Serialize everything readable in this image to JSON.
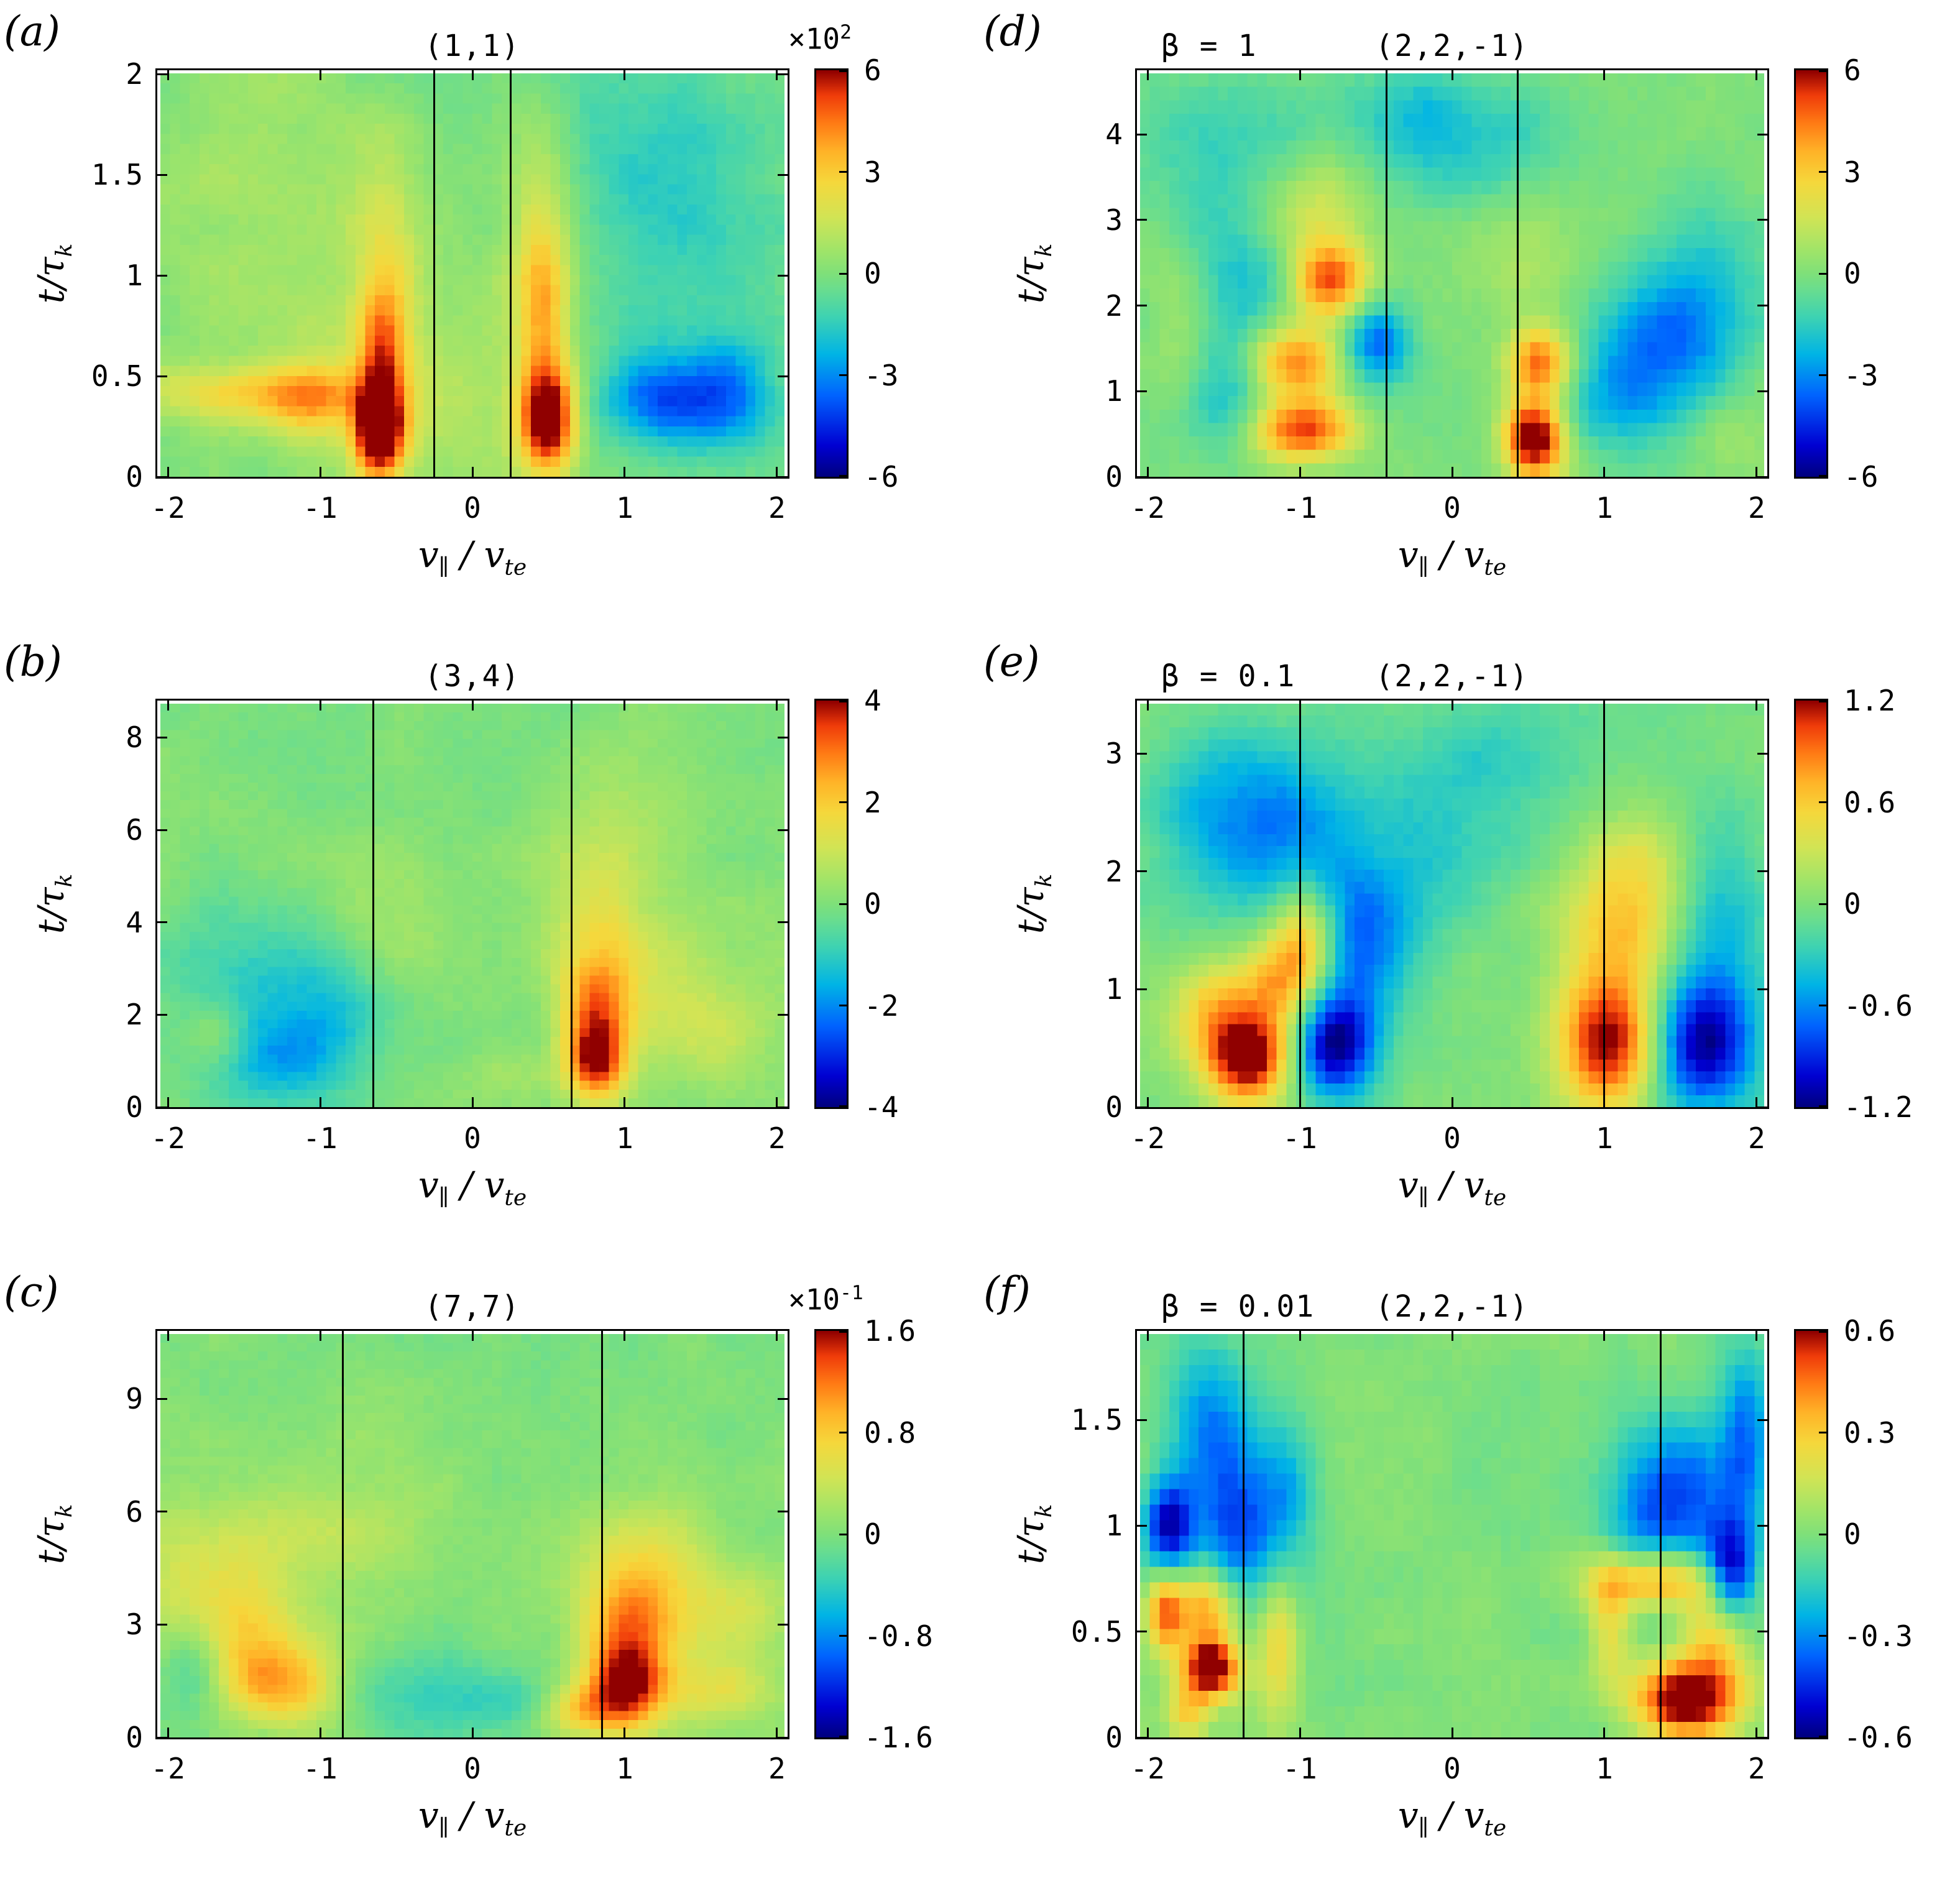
{
  "labels": {
    "ylabel_main": "t/τ",
    "ylabel_sub": "k",
    "xlabel_v": "v",
    "xlabel_sub1": "∥",
    "xlabel_mid": " / ",
    "xlabel_v2": "v",
    "xlabel_sub2": "te"
  },
  "palette": {
    "stops": [
      [
        -1.0,
        "#000080"
      ],
      [
        -0.85,
        "#0000d2"
      ],
      [
        -0.6,
        "#0064ff"
      ],
      [
        -0.4,
        "#00b4e6"
      ],
      [
        -0.22,
        "#3cd2b4"
      ],
      [
        -0.08,
        "#69dd8f"
      ],
      [
        0.0,
        "#7fe07a"
      ],
      [
        0.1,
        "#9ce46b"
      ],
      [
        0.28,
        "#d2e455"
      ],
      [
        0.45,
        "#f5d83c"
      ],
      [
        0.6,
        "#ffb428"
      ],
      [
        0.75,
        "#ff7814"
      ],
      [
        0.88,
        "#f03c0a"
      ],
      [
        1.0,
        "#900000"
      ]
    ]
  },
  "chart_data": [
    {
      "panel_label": "(a)",
      "beta_label": null,
      "title": "(1,1)",
      "type": "heatmap",
      "xlabel": "v∥ / vte",
      "ylabel": "t/τk",
      "xlim": [
        -2.07,
        2.07
      ],
      "ylim": [
        0,
        2.02
      ],
      "xticks": [
        {
          "v": -2,
          "label": "-2"
        },
        {
          "v": -1,
          "label": "-1"
        },
        {
          "v": 0,
          "label": "0"
        },
        {
          "v": 1,
          "label": "1"
        },
        {
          "v": 2,
          "label": "2"
        }
      ],
      "yticks": [
        {
          "v": 0,
          "label": "0"
        },
        {
          "v": 0.5,
          "label": "0.5"
        },
        {
          "v": 1,
          "label": "1"
        },
        {
          "v": 1.5,
          "label": "1.5"
        },
        {
          "v": 2,
          "label": "2"
        }
      ],
      "colorbar": {
        "max": 6,
        "scale_base": "×10",
        "scale_exp": "2",
        "ticks": [
          {
            "v": 6,
            "label": "6"
          },
          {
            "v": 3,
            "label": "3"
          },
          {
            "v": 0,
            "label": "0"
          },
          {
            "v": -3,
            "label": "-3"
          },
          {
            "v": -6,
            "label": "-6"
          }
        ]
      },
      "resonance_lines": [
        -0.25,
        0.25
      ],
      "grid": {
        "nx": 64,
        "ny": 40
      },
      "blobs": [
        [
          -0.62,
          0.22,
          0.12,
          0.16,
          7.5
        ],
        [
          -0.6,
          0.62,
          0.11,
          0.22,
          3.6
        ],
        [
          -0.56,
          1.15,
          0.15,
          0.35,
          1.7
        ],
        [
          0.5,
          0.28,
          0.13,
          0.18,
          6.8
        ],
        [
          0.47,
          0.8,
          0.12,
          0.28,
          3.2
        ],
        [
          0.45,
          1.35,
          0.16,
          0.35,
          1.8
        ],
        [
          -1.45,
          0.42,
          0.5,
          0.1,
          2.6
        ],
        [
          -1.05,
          0.38,
          0.22,
          0.14,
          2.2
        ],
        [
          -0.25,
          0.45,
          0.55,
          0.45,
          1.0
        ],
        [
          1.25,
          0.38,
          0.28,
          0.16,
          -3.4
        ],
        [
          1.72,
          0.42,
          0.22,
          0.2,
          -2.4
        ],
        [
          1.45,
          1.15,
          0.5,
          0.55,
          -1.3
        ],
        [
          -1.3,
          1.35,
          0.55,
          0.55,
          0.9
        ],
        [
          1.0,
          1.75,
          0.8,
          0.4,
          -0.7
        ]
      ]
    },
    {
      "panel_label": "(b)",
      "beta_label": null,
      "title": "(3,4)",
      "type": "heatmap",
      "xlabel": "v∥ / vte",
      "ylabel": "t/τk",
      "xlim": [
        -2.07,
        2.07
      ],
      "ylim": [
        0,
        8.8
      ],
      "xticks": [
        {
          "v": -2,
          "label": "-2"
        },
        {
          "v": -1,
          "label": "-1"
        },
        {
          "v": 0,
          "label": "0"
        },
        {
          "v": 1,
          "label": "1"
        },
        {
          "v": 2,
          "label": "2"
        }
      ],
      "yticks": [
        {
          "v": 0,
          "label": "0"
        },
        {
          "v": 2,
          "label": "2"
        },
        {
          "v": 4,
          "label": "4"
        },
        {
          "v": 6,
          "label": "6"
        },
        {
          "v": 8,
          "label": "8"
        }
      ],
      "colorbar": {
        "max": 4,
        "scale_base": null,
        "scale_exp": null,
        "ticks": [
          {
            "v": 4,
            "label": "4"
          },
          {
            "v": 2,
            "label": "2"
          },
          {
            "v": 0,
            "label": "0"
          },
          {
            "v": -2,
            "label": "-2"
          },
          {
            "v": -4,
            "label": "-4"
          }
        ]
      },
      "resonance_lines": [
        -0.65,
        0.65
      ],
      "grid": {
        "nx": 64,
        "ny": 46
      },
      "blobs": [
        [
          0.82,
          1.0,
          0.14,
          0.6,
          3.6
        ],
        [
          0.82,
          2.2,
          0.17,
          0.8,
          2.2
        ],
        [
          0.85,
          3.8,
          0.22,
          1.2,
          1.1
        ],
        [
          0.9,
          5.5,
          0.3,
          1.5,
          0.55
        ],
        [
          -1.25,
          1.3,
          0.35,
          0.9,
          -1.5
        ],
        [
          -1.5,
          2.8,
          0.45,
          1.2,
          -0.9
        ],
        [
          -0.95,
          2.2,
          0.3,
          1.0,
          -0.8
        ],
        [
          -1.7,
          1.6,
          0.15,
          0.5,
          0.9
        ],
        [
          -1.35,
          2.0,
          0.25,
          0.6,
          0.7
        ],
        [
          1.5,
          1.5,
          0.35,
          0.8,
          0.9
        ],
        [
          1.35,
          3.0,
          0.4,
          1.0,
          0.5
        ],
        [
          -0.55,
          4.0,
          0.5,
          1.3,
          0.45
        ],
        [
          0.3,
          0.7,
          0.25,
          0.4,
          0.5
        ]
      ]
    },
    {
      "panel_label": "(c)",
      "beta_label": null,
      "title": "(7,7)",
      "type": "heatmap",
      "xlabel": "v∥ / vte",
      "ylabel": "t/τk",
      "xlim": [
        -2.07,
        2.07
      ],
      "ylim": [
        0,
        10.8
      ],
      "xticks": [
        {
          "v": -2,
          "label": "-2"
        },
        {
          "v": -1,
          "label": "-1"
        },
        {
          "v": 0,
          "label": "0"
        },
        {
          "v": 1,
          "label": "1"
        },
        {
          "v": 2,
          "label": "2"
        }
      ],
      "yticks": [
        {
          "v": 0,
          "label": "0"
        },
        {
          "v": 3,
          "label": "3"
        },
        {
          "v": 6,
          "label": "6"
        },
        {
          "v": 9,
          "label": "9"
        }
      ],
      "colorbar": {
        "max": 1.6,
        "scale_base": "×10",
        "scale_exp": "-1",
        "ticks": [
          {
            "v": 1.6,
            "label": "1.6"
          },
          {
            "v": 0.8,
            "label": "0.8"
          },
          {
            "v": 0,
            "label": "0"
          },
          {
            "v": -0.8,
            "label": "-0.8"
          },
          {
            "v": -1.6,
            "label": "-1.6"
          }
        ]
      },
      "resonance_lines": [
        -0.85,
        0.85
      ],
      "grid": {
        "nx": 64,
        "ny": 46
      },
      "blobs": [
        [
          1.02,
          1.4,
          0.18,
          0.8,
          1.5
        ],
        [
          1.05,
          3.0,
          0.22,
          1.0,
          0.9
        ],
        [
          1.15,
          4.6,
          0.3,
          1.3,
          0.5
        ],
        [
          0.72,
          0.7,
          0.2,
          0.5,
          0.8
        ],
        [
          -1.25,
          1.4,
          0.3,
          0.8,
          0.95
        ],
        [
          -1.55,
          2.8,
          0.35,
          1.0,
          0.55
        ],
        [
          -1.8,
          4.6,
          0.3,
          1.3,
          0.35
        ],
        [
          -1.85,
          2.0,
          0.15,
          0.9,
          -0.5
        ],
        [
          -0.45,
          1.2,
          0.4,
          0.8,
          -0.35
        ],
        [
          0.3,
          0.9,
          0.25,
          0.5,
          -0.3
        ],
        [
          1.75,
          3.2,
          0.25,
          1.0,
          0.5
        ],
        [
          -0.95,
          5.5,
          0.6,
          1.5,
          0.3
        ],
        [
          1.6,
          1.2,
          0.3,
          0.6,
          0.45
        ]
      ]
    },
    {
      "panel_label": "(d)",
      "beta_label": "β = 1",
      "title": "(2,2,-1)",
      "type": "heatmap",
      "xlabel": "v∥ / vte",
      "ylabel": "t/τk",
      "xlim": [
        -2.07,
        2.07
      ],
      "ylim": [
        0,
        4.75
      ],
      "xticks": [
        {
          "v": -2,
          "label": "-2"
        },
        {
          "v": -1,
          "label": "-1"
        },
        {
          "v": 0,
          "label": "0"
        },
        {
          "v": 1,
          "label": "1"
        },
        {
          "v": 2,
          "label": "2"
        }
      ],
      "yticks": [
        {
          "v": 0,
          "label": "0"
        },
        {
          "v": 1,
          "label": "1"
        },
        {
          "v": 2,
          "label": "2"
        },
        {
          "v": 3,
          "label": "3"
        },
        {
          "v": 4,
          "label": "4"
        }
      ],
      "colorbar": {
        "max": 6,
        "scale_base": null,
        "scale_exp": null,
        "ticks": [
          {
            "v": 6,
            "label": "6"
          },
          {
            "v": 3,
            "label": "3"
          },
          {
            "v": 0,
            "label": "0"
          },
          {
            "v": -3,
            "label": "-3"
          },
          {
            "v": -6,
            "label": "-6"
          }
        ]
      },
      "resonance_lines": [
        -0.43,
        0.43
      ],
      "grid": {
        "nx": 64,
        "ny": 30
      },
      "blobs": [
        [
          0.55,
          0.45,
          0.14,
          0.32,
          7.2
        ],
        [
          0.58,
          1.35,
          0.14,
          0.28,
          4.6
        ],
        [
          -1.0,
          0.55,
          0.24,
          0.26,
          5.4
        ],
        [
          -1.05,
          1.35,
          0.22,
          0.3,
          4.6
        ],
        [
          -0.82,
          2.3,
          0.18,
          0.32,
          5.0
        ],
        [
          -0.95,
          3.1,
          0.28,
          0.45,
          2.0
        ],
        [
          -0.5,
          1.55,
          0.16,
          0.35,
          -3.6
        ],
        [
          -1.5,
          1.0,
          0.2,
          0.5,
          -1.8
        ],
        [
          -1.35,
          2.3,
          0.28,
          0.7,
          -1.6
        ],
        [
          -1.6,
          3.8,
          0.4,
          0.8,
          -1.5
        ],
        [
          1.35,
          1.45,
          0.35,
          0.55,
          -3.0
        ],
        [
          1.6,
          2.3,
          0.3,
          0.7,
          -1.7
        ],
        [
          1.05,
          0.75,
          0.25,
          0.35,
          -1.6
        ],
        [
          0.2,
          3.9,
          0.5,
          0.55,
          -1.5
        ],
        [
          -0.3,
          4.3,
          0.4,
          0.4,
          -1.2
        ],
        [
          0.55,
          2.6,
          0.25,
          0.7,
          0.9
        ],
        [
          1.8,
          0.5,
          0.2,
          0.35,
          0.9
        ],
        [
          -1.8,
          1.8,
          0.15,
          0.8,
          0.8
        ]
      ]
    },
    {
      "panel_label": "(e)",
      "beta_label": "β = 0.1",
      "title": "(2,2,-1)",
      "type": "heatmap",
      "xlabel": "v∥ / vte",
      "ylabel": "t/τk",
      "xlim": [
        -2.07,
        2.07
      ],
      "ylim": [
        0,
        3.45
      ],
      "xticks": [
        {
          "v": -2,
          "label": "-2"
        },
        {
          "v": -1,
          "label": "-1"
        },
        {
          "v": 0,
          "label": "0"
        },
        {
          "v": 1,
          "label": "1"
        },
        {
          "v": 2,
          "label": "2"
        }
      ],
      "yticks": [
        {
          "v": 0,
          "label": "0"
        },
        {
          "v": 1,
          "label": "1"
        },
        {
          "v": 2,
          "label": "2"
        },
        {
          "v": 3,
          "label": "3"
        }
      ],
      "colorbar": {
        "max": 1.2,
        "scale_base": null,
        "scale_exp": null,
        "ticks": [
          {
            "v": 1.2,
            "label": "1.2"
          },
          {
            "v": 0.6,
            "label": "0.6"
          },
          {
            "v": 0,
            "label": "0"
          },
          {
            "v": -0.6,
            "label": "-0.6"
          },
          {
            "v": -1.2,
            "label": "-1.2"
          }
        ]
      },
      "resonance_lines": [
        -1.0,
        1.0
      ],
      "grid": {
        "nx": 64,
        "ny": 34
      },
      "blobs": [
        [
          -1.35,
          0.42,
          0.2,
          0.27,
          1.3
        ],
        [
          -1.6,
          0.85,
          0.2,
          0.3,
          0.55
        ],
        [
          -1.15,
          1.05,
          0.18,
          0.3,
          0.7
        ],
        [
          -0.98,
          1.45,
          0.15,
          0.33,
          0.8
        ],
        [
          -0.78,
          0.52,
          0.2,
          0.32,
          -1.1
        ],
        [
          -0.62,
          1.35,
          0.25,
          0.5,
          -0.6
        ],
        [
          -1.5,
          2.5,
          0.35,
          0.6,
          -0.5
        ],
        [
          -1.05,
          2.3,
          0.3,
          0.5,
          -0.35
        ],
        [
          1.05,
          0.5,
          0.24,
          0.35,
          1.25
        ],
        [
          1.1,
          1.3,
          0.25,
          0.5,
          0.55
        ],
        [
          1.3,
          1.95,
          0.3,
          0.5,
          0.4
        ],
        [
          1.62,
          0.5,
          0.28,
          0.4,
          -1.0
        ],
        [
          1.75,
          1.5,
          0.25,
          0.8,
          -0.45
        ],
        [
          0.2,
          2.9,
          0.5,
          0.5,
          -0.3
        ],
        [
          -0.35,
          2.0,
          0.4,
          0.5,
          -0.25
        ]
      ]
    },
    {
      "panel_label": "(f)",
      "beta_label": "β = 0.01",
      "title": "(2,2,-1)",
      "type": "heatmap",
      "xlabel": "v∥ / vte",
      "ylabel": "t/τk",
      "xlim": [
        -2.07,
        2.07
      ],
      "ylim": [
        0,
        1.92
      ],
      "xticks": [
        {
          "v": -2,
          "label": "-2"
        },
        {
          "v": -1,
          "label": "-1"
        },
        {
          "v": 0,
          "label": "0"
        },
        {
          "v": 1,
          "label": "1"
        },
        {
          "v": 2,
          "label": "2"
        }
      ],
      "yticks": [
        {
          "v": 0,
          "label": "0"
        },
        {
          "v": 0.5,
          "label": "0.5"
        },
        {
          "v": 1,
          "label": "1"
        },
        {
          "v": 1.5,
          "label": "1.5"
        }
      ],
      "colorbar": {
        "max": 0.6,
        "scale_base": null,
        "scale_exp": null,
        "ticks": [
          {
            "v": 0.6,
            "label": "0.6"
          },
          {
            "v": 0.3,
            "label": "0.3"
          },
          {
            "v": 0,
            "label": "0"
          },
          {
            "v": -0.3,
            "label": "-0.3"
          },
          {
            "v": -0.6,
            "label": "-0.6"
          }
        ]
      },
      "resonance_lines": [
        -1.37,
        1.37
      ],
      "grid": {
        "nx": 64,
        "ny": 26
      },
      "blobs": [
        [
          -1.6,
          0.33,
          0.13,
          0.1,
          0.72
        ],
        [
          -1.62,
          0.62,
          0.15,
          0.13,
          0.42
        ],
        [
          -1.9,
          0.6,
          0.09,
          0.14,
          0.45
        ],
        [
          -1.75,
          0.12,
          0.1,
          0.1,
          0.3
        ],
        [
          -1.88,
          1.0,
          0.12,
          0.16,
          -0.55
        ],
        [
          -1.42,
          0.95,
          0.18,
          0.25,
          -0.35
        ],
        [
          -1.6,
          1.45,
          0.2,
          0.3,
          -0.3
        ],
        [
          -1.15,
          0.45,
          0.1,
          0.25,
          0.3
        ],
        [
          -1.1,
          1.1,
          0.15,
          0.3,
          -0.22
        ],
        [
          1.55,
          0.18,
          0.24,
          0.13,
          0.72
        ],
        [
          1.35,
          0.75,
          0.3,
          0.1,
          0.5
        ],
        [
          1.75,
          0.5,
          0.15,
          0.18,
          0.32
        ],
        [
          1.85,
          0.78,
          0.12,
          0.16,
          -0.55
        ],
        [
          1.6,
          1.15,
          0.25,
          0.28,
          -0.35
        ],
        [
          1.95,
          1.45,
          0.12,
          0.3,
          -0.3
        ],
        [
          1.25,
          1.0,
          0.2,
          0.3,
          -0.22
        ],
        [
          1.05,
          0.55,
          0.1,
          0.2,
          0.25
        ]
      ]
    }
  ]
}
